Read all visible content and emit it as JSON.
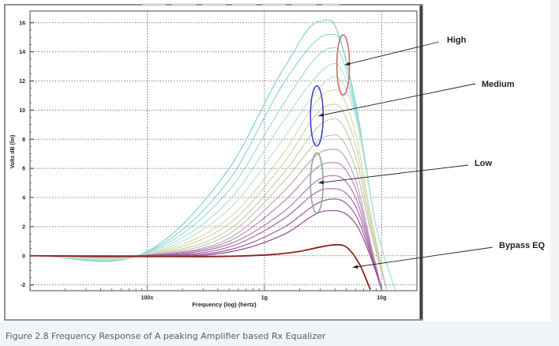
{
  "chart_data": {
    "type": "line",
    "title": "",
    "xlabel": "Frequency (log) (hertz)",
    "ylabel": "Volts dB (lin)",
    "xscale": "log",
    "xlim": [
      10000000,
      20000000000
    ],
    "ylim": [
      -2.4,
      16.8
    ],
    "x_ticks": [
      {
        "value": 100000000,
        "label": "100x"
      },
      {
        "value": 1000000000,
        "label": "1g"
      },
      {
        "value": 10000000000,
        "label": "10g"
      }
    ],
    "y_ticks": [
      {
        "value": 16,
        "label": "16"
      },
      {
        "value": 14,
        "label": "14"
      },
      {
        "value": 12,
        "label": "12"
      },
      {
        "value": 10,
        "label": "10"
      },
      {
        "value": 8,
        "label": "8"
      },
      {
        "value": 6,
        "label": "6"
      },
      {
        "value": 4,
        "label": "4"
      },
      {
        "value": 2,
        "label": "2"
      },
      {
        "value": 0,
        "label": "0"
      },
      {
        "value": -2,
        "label": "-2"
      }
    ],
    "grid": true,
    "series": [
      {
        "name": "high-1",
        "group": "High",
        "color": "#7ed3d3",
        "x": [
          10000000,
          100000000,
          500000000,
          1500000000,
          3000000000,
          4000000000,
          6000000000,
          9000000000,
          13000000000
        ],
        "y": [
          0,
          0.3,
          6.0,
          13.0,
          16.1,
          15.8,
          10.5,
          2.0,
          -2.3
        ]
      },
      {
        "name": "high-2",
        "group": "High",
        "color": "#8fd8d4",
        "x": [
          10000000,
          100000000,
          500000000,
          1500000000,
          3000000000,
          4000000000,
          6000000000,
          9000000000,
          13000000000
        ],
        "y": [
          0,
          0.25,
          5.2,
          12.0,
          15.0,
          15.2,
          10.3,
          2.0,
          -2.3
        ]
      },
      {
        "name": "high-3",
        "group": "High",
        "color": "#9fddd6",
        "x": [
          10000000,
          100000000,
          500000000,
          1500000000,
          3000000000,
          4000000000,
          6000000000,
          9000000000,
          13000000000
        ],
        "y": [
          0,
          0.2,
          4.5,
          10.6,
          13.9,
          14.3,
          10.0,
          2.0,
          -2.3
        ]
      },
      {
        "name": "high-4",
        "group": "High",
        "color": "#aee2d8",
        "x": [
          10000000,
          100000000,
          500000000,
          1500000000,
          3000000000,
          4000000000,
          6000000000,
          9000000000,
          13000000000
        ],
        "y": [
          0,
          0.15,
          3.8,
          9.4,
          12.6,
          13.2,
          9.8,
          2.0,
          -2.3
        ]
      },
      {
        "name": "high-5",
        "group": "High",
        "color": "#bde6da",
        "x": [
          10000000,
          100000000,
          500000000,
          1500000000,
          3000000000,
          4000000000,
          6000000000,
          9000000000,
          13000000000
        ],
        "y": [
          0,
          0.1,
          3.2,
          8.2,
          11.6,
          12.3,
          9.5,
          2.0,
          -2.3
        ]
      },
      {
        "name": "medium-1",
        "group": "Medium",
        "color": "#d6dca8",
        "x": [
          10000000,
          100000000,
          500000000,
          1500000000,
          3000000000,
          4000000000,
          6000000000,
          8000000000,
          11000000000
        ],
        "y": [
          0,
          0.1,
          2.6,
          7.2,
          10.9,
          11.4,
          8.4,
          3.0,
          -2.3
        ]
      },
      {
        "name": "medium-2",
        "group": "Medium",
        "color": "#d0d5a6",
        "x": [
          10000000,
          100000000,
          500000000,
          1500000000,
          3000000000,
          4000000000,
          6000000000,
          8000000000,
          11000000000
        ],
        "y": [
          0,
          0.08,
          2.2,
          6.5,
          10.0,
          10.4,
          7.6,
          2.6,
          -2.3
        ]
      },
      {
        "name": "medium-3",
        "group": "Medium",
        "color": "#c9cfa8",
        "x": [
          10000000,
          100000000,
          500000000,
          1500000000,
          3000000000,
          4000000000,
          6000000000,
          8000000000,
          11000000000
        ],
        "y": [
          0,
          0.06,
          1.8,
          5.8,
          9.0,
          9.4,
          6.8,
          2.2,
          -2.3
        ]
      },
      {
        "name": "medium-4",
        "group": "Medium",
        "color": "#c4c7ae",
        "x": [
          10000000,
          100000000,
          500000000,
          1500000000,
          3000000000,
          4000000000,
          6000000000,
          8000000000,
          11000000000
        ],
        "y": [
          0,
          0.05,
          1.5,
          5.2,
          8.0,
          8.3,
          6.0,
          1.8,
          -2.3
        ]
      },
      {
        "name": "low-1",
        "group": "Low",
        "color": "#c2a3c4",
        "x": [
          10000000,
          100000000,
          500000000,
          1500000000,
          3000000000,
          4000000000,
          6000000000,
          8000000000,
          10000000000
        ],
        "y": [
          0,
          0.05,
          1.2,
          4.5,
          7.1,
          7.3,
          5.2,
          1.0,
          -2.3
        ]
      },
      {
        "name": "low-2",
        "group": "Low",
        "color": "#b98bbb",
        "x": [
          10000000,
          100000000,
          500000000,
          1500000000,
          3000000000,
          4000000000,
          6000000000,
          8000000000,
          10000000000
        ],
        "y": [
          0,
          0.04,
          1.0,
          3.8,
          6.2,
          6.4,
          4.6,
          0.8,
          -2.3
        ]
      },
      {
        "name": "low-3",
        "group": "Low",
        "color": "#b07ab2",
        "x": [
          10000000,
          100000000,
          500000000,
          1500000000,
          3000000000,
          4000000000,
          6000000000,
          8000000000,
          10000000000
        ],
        "y": [
          0,
          0.03,
          0.8,
          3.1,
          5.3,
          5.5,
          4.0,
          0.6,
          -2.3
        ]
      },
      {
        "name": "low-4",
        "group": "Low",
        "color": "#a66aa9",
        "x": [
          10000000,
          100000000,
          500000000,
          1500000000,
          3000000000,
          4000000000,
          6000000000,
          8000000000,
          10000000000
        ],
        "y": [
          0,
          0.02,
          0.6,
          2.6,
          4.5,
          4.6,
          3.4,
          0.4,
          -2.3
        ]
      },
      {
        "name": "low-5",
        "group": "Low",
        "color": "#9c5aa0",
        "x": [
          10000000,
          100000000,
          500000000,
          1500000000,
          3000000000,
          4000000000,
          6000000000,
          8000000000,
          10000000000
        ],
        "y": [
          0,
          0.01,
          0.4,
          2.0,
          3.7,
          3.9,
          2.8,
          0.2,
          -2.3
        ]
      },
      {
        "name": "low-6",
        "group": "Low",
        "color": "#914c96",
        "x": [
          10000000,
          100000000,
          500000000,
          1500000000,
          3000000000,
          4000000000,
          6000000000,
          8000000000,
          10000000000
        ],
        "y": [
          0,
          0.0,
          0.25,
          1.5,
          3.0,
          3.1,
          2.2,
          0.0,
          -2.3
        ]
      },
      {
        "name": "bypass",
        "group": "Bypass EQ",
        "color": "#8a2323",
        "x": [
          10000000,
          100000000,
          1000000000,
          2000000000,
          3000000000,
          4000000000,
          5000000000,
          6500000000,
          8000000000
        ],
        "y": [
          0,
          -0.05,
          0.05,
          0.3,
          0.6,
          0.75,
          0.6,
          -0.6,
          -2.3
        ]
      }
    ],
    "annotations": [
      {
        "label": "High",
        "ellipse_color": "#d46a6a",
        "target_x": 4700000000,
        "target_y": 13.1
      },
      {
        "label": "Medium",
        "ellipse_color": "#3d46c4",
        "target_x": 2800000000,
        "target_y": 9.6
      },
      {
        "label": "Low",
        "ellipse_color": "#8fa7a3",
        "target_x": 2800000000,
        "target_y": 5.0
      },
      {
        "label": "Bypass EQ",
        "ellipse_color": "",
        "target_x": 5500000000,
        "target_y": -0.8
      }
    ]
  },
  "caption": "Figure 2.8 Frequency Response of A peaking Amplifier based Rx Equalizer"
}
